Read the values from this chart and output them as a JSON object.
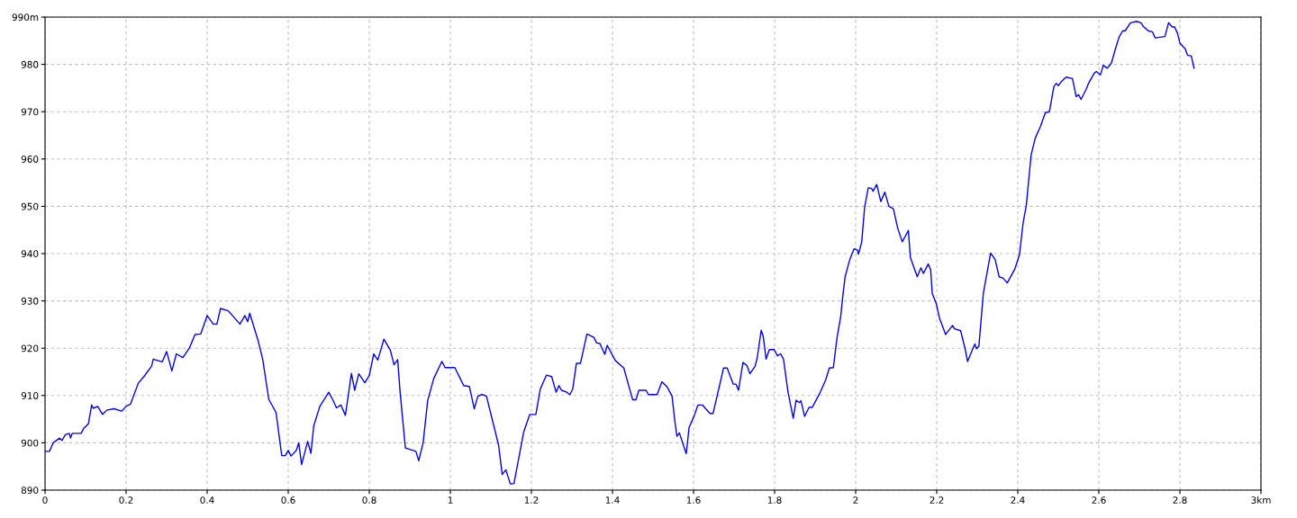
{
  "chart_data": {
    "type": "line",
    "x": [
      0,
      0.011,
      0.02,
      0.036,
      0.042,
      0.05,
      0.06,
      0.063,
      0.067,
      0.089,
      0.095,
      0.107,
      0.115,
      0.119,
      0.13,
      0.142,
      0.152,
      0.17,
      0.189,
      0.2,
      0.211,
      0.23,
      0.244,
      0.263,
      0.267,
      0.289,
      0.3,
      0.313,
      0.324,
      0.34,
      0.356,
      0.37,
      0.384,
      0.4,
      0.415,
      0.424,
      0.433,
      0.452,
      0.481,
      0.493,
      0.5,
      0.505,
      0.526,
      0.537,
      0.552,
      0.57,
      0.584,
      0.593,
      0.6,
      0.607,
      0.62,
      0.626,
      0.633,
      0.648,
      0.656,
      0.663,
      0.678,
      0.7,
      0.71,
      0.719,
      0.73,
      0.741,
      0.756,
      0.764,
      0.774,
      0.789,
      0.8,
      0.811,
      0.821,
      0.836,
      0.852,
      0.861,
      0.87,
      0.876,
      0.889,
      0.915,
      0.922,
      0.933,
      0.944,
      0.959,
      0.979,
      0.987,
      1.011,
      1.033,
      1.047,
      1.059,
      1.068,
      1.078,
      1.089,
      1.119,
      1.128,
      1.137,
      1.148,
      1.157,
      1.181,
      1.196,
      1.211,
      1.222,
      1.237,
      1.25,
      1.261,
      1.268,
      1.274,
      1.285,
      1.295,
      1.302,
      1.311,
      1.321,
      1.337,
      1.354,
      1.361,
      1.369,
      1.381,
      1.387,
      1.407,
      1.428,
      1.441,
      1.45,
      1.458,
      1.465,
      1.483,
      1.489,
      1.51,
      1.522,
      1.535,
      1.547,
      1.554,
      1.559,
      1.565,
      1.582,
      1.589,
      1.602,
      1.611,
      1.622,
      1.63,
      1.641,
      1.648,
      1.659,
      1.674,
      1.683,
      1.698,
      1.705,
      1.711,
      1.722,
      1.732,
      1.739,
      1.752,
      1.757,
      1.767,
      1.772,
      1.779,
      1.787,
      1.799,
      1.807,
      1.815,
      1.822,
      1.833,
      1.846,
      1.853,
      1.861,
      1.865,
      1.874,
      1.885,
      1.893,
      1.911,
      1.926,
      1.935,
      1.945,
      1.954,
      1.963,
      1.969,
      1.974,
      1.985,
      1.996,
      2.004,
      2.007,
      2.015,
      2.022,
      2.031,
      2.039,
      2.043,
      2.052,
      2.062,
      2.072,
      2.082,
      2.093,
      2.104,
      2.115,
      2.13,
      2.135,
      2.144,
      2.152,
      2.161,
      2.167,
      2.179,
      2.185,
      2.189,
      2.199,
      2.207,
      2.222,
      2.239,
      2.244,
      2.259,
      2.27,
      2.276,
      2.294,
      2.298,
      2.304,
      2.315,
      2.333,
      2.344,
      2.354,
      2.364,
      2.374,
      2.393,
      2.404,
      2.413,
      2.421,
      2.428,
      2.433,
      2.443,
      2.456,
      2.468,
      2.478,
      2.489,
      2.495,
      2.5,
      2.507,
      2.519,
      2.535,
      2.544,
      2.55,
      2.556,
      2.569,
      2.574,
      2.589,
      2.594,
      2.604,
      2.611,
      2.621,
      2.631,
      2.641,
      2.65,
      2.659,
      2.665,
      2.678,
      2.693,
      2.704,
      2.71,
      2.722,
      2.732,
      2.739,
      2.763,
      2.772,
      2.781,
      2.787,
      2.794,
      2.8,
      2.813,
      2.819,
      2.828,
      2.835
    ],
    "series": [
      {
        "color": "#0000ff",
        "values": [
          898.2,
          898.2,
          900,
          901,
          900.5,
          901.7,
          902,
          901,
          902,
          902,
          903,
          904,
          908,
          907.3,
          907.7,
          906,
          906.9,
          907.2,
          906.7,
          907.7,
          908.2,
          912.6,
          914,
          916.2,
          917.7,
          917.1,
          919.3,
          915.2,
          918.8,
          918,
          920,
          922.9,
          923,
          926.9,
          925.1,
          925.1,
          928.4,
          927.9,
          925.1,
          926.9,
          925.6,
          927.4,
          921.5,
          917.7,
          909.2,
          906.4,
          897.3,
          897.3,
          898.4,
          897.2,
          898.4,
          900,
          895.4,
          900.3,
          897.8,
          903.6,
          907.7,
          910.7,
          909.1,
          907.4,
          908,
          905.8,
          914.7,
          911.1,
          914.6,
          912.7,
          914.2,
          918.8,
          917.5,
          921.9,
          919.6,
          916.5,
          917.6,
          910.8,
          898.9,
          898.2,
          896.2,
          900.1,
          908.9,
          913.6,
          917.2,
          915.9,
          915.9,
          912.1,
          911.9,
          907.2,
          909.9,
          910.2,
          909.9,
          899.5,
          893.3,
          894.3,
          891.3,
          891.4,
          902.3,
          906,
          906,
          911.4,
          914.3,
          914,
          910.7,
          912.1,
          911.1,
          910.8,
          910.2,
          911.4,
          916.8,
          916.8,
          923,
          922.3,
          921.1,
          921,
          918.7,
          920.6,
          917.4,
          915.8,
          911.8,
          909.1,
          909.1,
          911.1,
          911.1,
          910.2,
          910.2,
          912.9,
          911.8,
          909.9,
          904.5,
          901.4,
          902.1,
          897.7,
          903.2,
          905.8,
          908,
          908,
          907.2,
          906.2,
          906.2,
          910.2,
          915.8,
          915.8,
          912.4,
          912.4,
          911.1,
          917,
          916.3,
          914.6,
          916.2,
          917.9,
          923.8,
          922.5,
          917.7,
          919.7,
          919.7,
          918.4,
          918.8,
          917.7,
          910.8,
          905.2,
          909,
          908.5,
          908.9,
          905.6,
          907.5,
          907.5,
          910.4,
          913.3,
          915.8,
          915.9,
          922.2,
          926.6,
          931.6,
          935.1,
          938.6,
          941,
          940.8,
          939.9,
          942.5,
          949.7,
          953.9,
          953.8,
          953.2,
          954.6,
          951,
          953,
          950,
          949.5,
          945.3,
          942.5,
          944.9,
          939.2,
          937,
          935.1,
          937,
          935.8,
          937.8,
          936.6,
          931.6,
          929.4,
          926.3,
          922.9,
          924.8,
          924.1,
          923.7,
          919.9,
          917.2,
          920.9,
          919.9,
          920.4,
          931.6,
          940.1,
          938.8,
          935.1,
          934.8,
          933.8,
          936.8,
          939.7,
          946.4,
          950.2,
          956.5,
          960.9,
          964.4,
          966.9,
          969.8,
          970,
          975.3,
          976,
          975.5,
          976.3,
          977.3,
          977,
          973.2,
          973.6,
          972.6,
          974.8,
          975.9,
          978.2,
          978.5,
          977.8,
          979.8,
          979.2,
          980.3,
          983.3,
          985.8,
          987.1,
          987.1,
          988.8,
          989.1,
          988.8,
          988,
          987.1,
          986.9,
          985.6,
          985.9,
          988.8,
          987.9,
          987.9,
          986.6,
          984.5,
          983.3,
          981.9,
          981.8,
          979.2
        ]
      }
    ],
    "xlim": [
      0,
      3
    ],
    "ylim": [
      890,
      990
    ],
    "xticks": [
      0,
      0.2,
      0.4,
      0.6,
      0.8,
      1,
      1.2,
      1.4,
      1.6,
      1.8,
      2,
      2.2,
      2.4,
      2.6,
      2.8,
      {
        "value": 3,
        "label": "3km"
      }
    ],
    "yticks": [
      890,
      900,
      910,
      920,
      930,
      940,
      950,
      960,
      970,
      980,
      {
        "value": 990,
        "label": "990m"
      }
    ],
    "grid": true,
    "marker": "none",
    "line_style": "solid",
    "legend": false
  }
}
